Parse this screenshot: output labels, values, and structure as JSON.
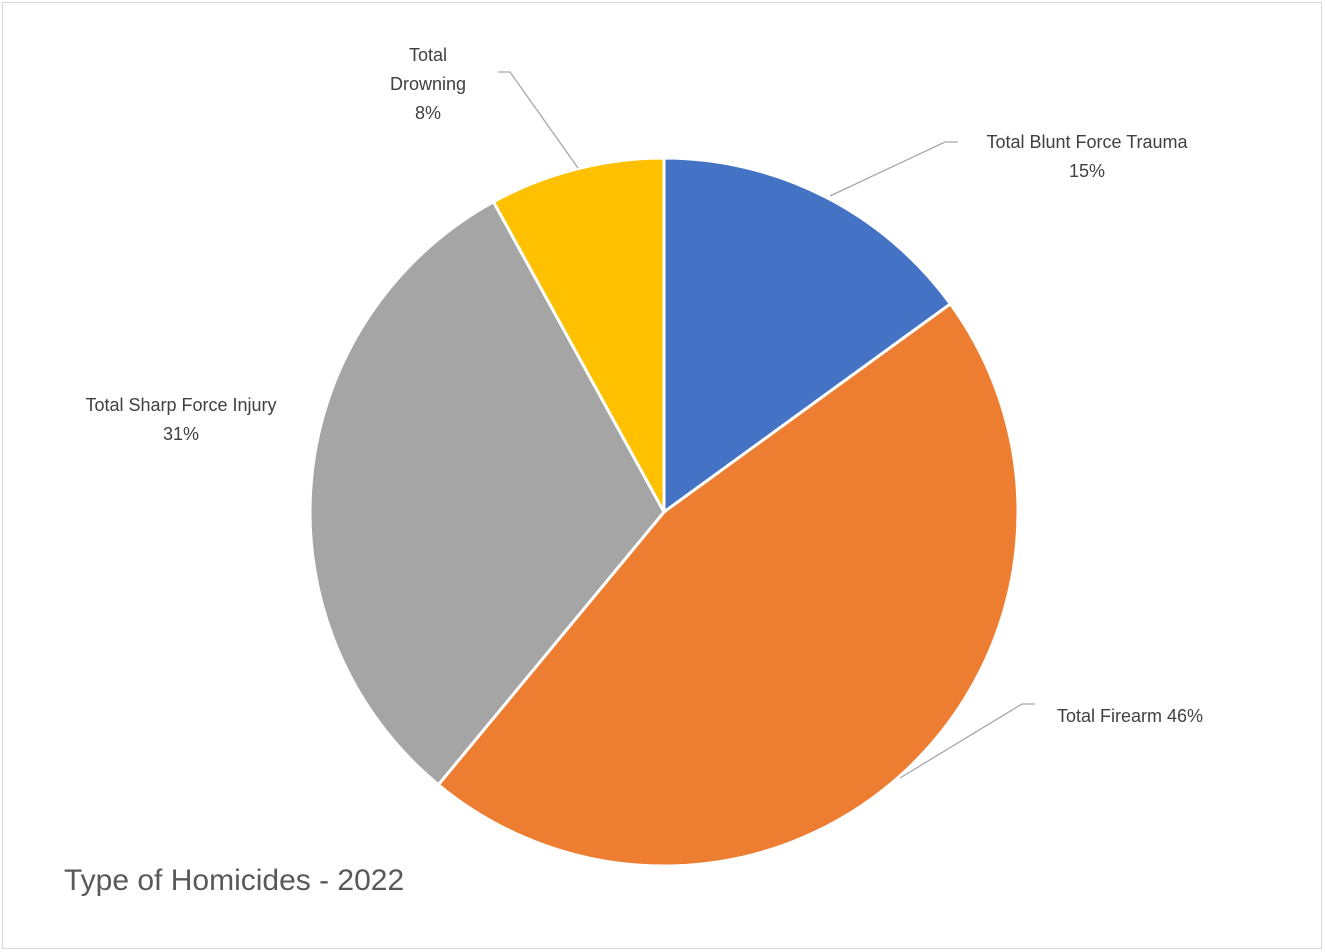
{
  "chart_data": {
    "type": "pie",
    "title": "Type of Homicides - 2022",
    "slices": [
      {
        "label": "Total Blunt Force Trauma",
        "value": 15,
        "display": "15%",
        "color": "#4472C4"
      },
      {
        "label": "Total Firearm",
        "value": 46,
        "display": "46%",
        "color": "#ED7D31"
      },
      {
        "label": "Total Sharp Force Injury",
        "value": 31,
        "display": "31%",
        "color": "#A5A5A5"
      },
      {
        "label": "Total Drowning",
        "value": 8,
        "display": "8%",
        "color": "#FFC000"
      }
    ],
    "legend": "none",
    "data_labels": "outside with leader lines",
    "title_position": "bottom-left"
  }
}
